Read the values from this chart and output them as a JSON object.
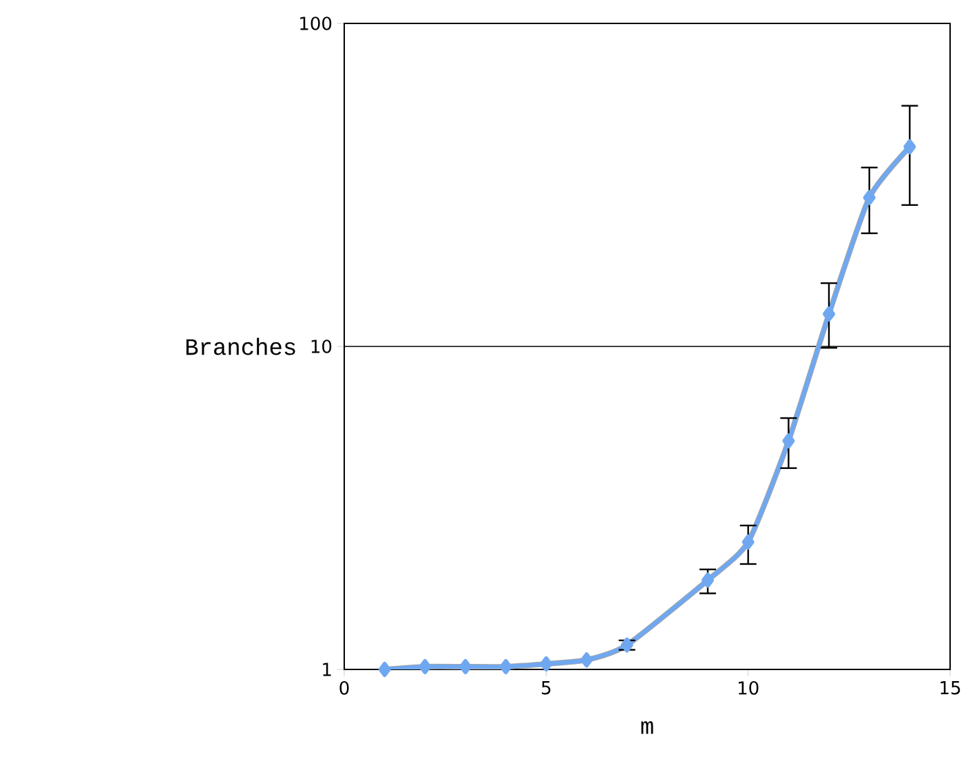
{
  "chart_data": {
    "type": "line",
    "xlabel": "m",
    "ylabel": "Branches",
    "x": [
      1,
      2,
      3,
      4,
      5,
      6,
      7,
      9,
      10,
      11,
      12,
      13,
      14
    ],
    "values": [
      1.0,
      1.02,
      1.02,
      1.02,
      1.04,
      1.07,
      1.19,
      1.89,
      2.48,
      5.1,
      12.6,
      28.9,
      41.5
    ],
    "errors": [
      null,
      null,
      null,
      null,
      null,
      null,
      [
        1.15,
        1.23
      ],
      [
        1.72,
        2.04
      ],
      [
        2.12,
        2.79
      ],
      [
        4.2,
        6.0
      ],
      [
        9.9,
        15.7
      ],
      [
        22.4,
        35.8
      ],
      [
        27.4,
        55.6
      ]
    ],
    "color": "#6fa8f0",
    "marker": "diamond",
    "line_style": "solid",
    "log": "y",
    "grid": "y",
    "xlim": [
      0,
      15
    ],
    "ylim": [
      1,
      100
    ],
    "xticks": [
      0,
      5,
      10,
      15
    ],
    "yticks": [
      1,
      10,
      100
    ]
  }
}
